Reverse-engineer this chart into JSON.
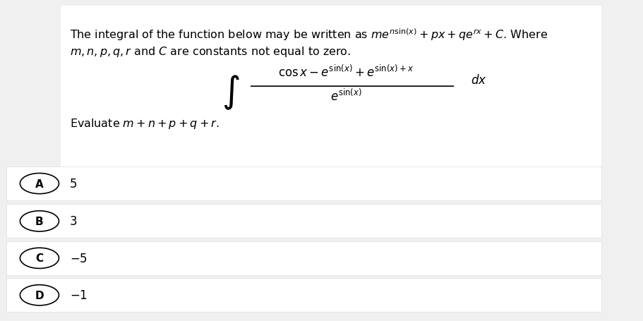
{
  "bg_color": "#f0f0f0",
  "question_bg": "#ffffff",
  "answer_bg": "#f0f0f0",
  "answer_box_bg": "#ffffff",
  "text_color": "#000000",
  "line1": "The integral of the function below may be written as $me^{n\\sin(x)} + px + qe^{rx} + C$. Where",
  "line2": "$m, n, p, q, r$ and $C$ are constants not equal to zero.",
  "integral_numerator": "$\\cos x - e^{\\sin(x)} + e^{\\sin(x)+x}$",
  "integral_denominator": "$e^{\\sin(x)}$",
  "integral_dx": "$dx$",
  "evaluate_line": "Evaluate $m + n + p + q + r$.",
  "choices": [
    {
      "label": "A",
      "value": "5"
    },
    {
      "label": "B",
      "value": "3"
    },
    {
      "label": "C",
      "value": "$-5$"
    },
    {
      "label": "D",
      "value": "$-1$"
    }
  ],
  "fig_width": 9.12,
  "fig_height": 4.56,
  "dpi": 100
}
